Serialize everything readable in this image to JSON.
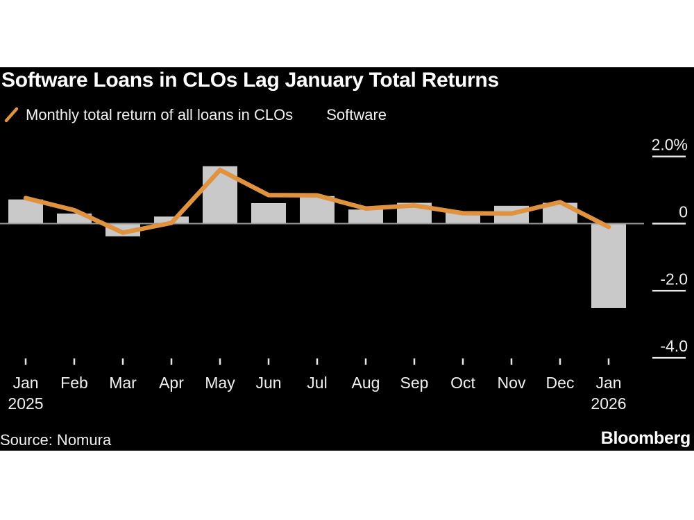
{
  "page": {
    "title": "Software Loans in CLOs Lag January Total Returns",
    "source": "Source: Nomura",
    "logo": "Bloomberg"
  },
  "colors": {
    "background_card": "#000000",
    "background_page": "#ffffff",
    "line_series": "#e0923e",
    "bar_series": "#c9c9c9",
    "zero_line": "#999999",
    "tick": "#e8e8e8",
    "axis_text": "#f0f0f0"
  },
  "legend": {
    "line_label": "Monthly total return of all loans in CLOs",
    "bar_label": "Software"
  },
  "chart_data": {
    "type": "bar+line",
    "title": "Software Loans in CLOs Lag January Total Returns",
    "categories": [
      "Jan",
      "Feb",
      "Mar",
      "Apr",
      "May",
      "Jun",
      "Jul",
      "Aug",
      "Sep",
      "Oct",
      "Nov",
      "Dec",
      "Jan"
    ],
    "year_labels": [
      {
        "index": 0,
        "text": "2025"
      },
      {
        "index": 12,
        "text": "2026"
      }
    ],
    "series": [
      {
        "name": "Software",
        "type": "bar",
        "color": "#c9c9c9",
        "values": [
          0.72,
          0.3,
          -0.38,
          0.21,
          1.71,
          0.61,
          0.82,
          0.42,
          0.62,
          0.35,
          0.53,
          0.62,
          -2.51
        ]
      },
      {
        "name": "Monthly total return of all loans in CLOs",
        "type": "line",
        "color": "#e0923e",
        "values": [
          0.76,
          0.4,
          -0.27,
          0.02,
          1.6,
          0.85,
          0.84,
          0.45,
          0.54,
          0.31,
          0.3,
          0.64,
          -0.1
        ]
      }
    ],
    "y_axis": {
      "unit": "%",
      "ticks": [
        2.0,
        0,
        -2.0,
        -4.0
      ],
      "tick_labels": [
        "2.0%",
        "0",
        "-2.0",
        "-4.0"
      ],
      "range": [
        -4.6,
        2.4
      ]
    },
    "xlabel": "",
    "ylabel": "",
    "grid": false,
    "legend_position": "top-left"
  }
}
